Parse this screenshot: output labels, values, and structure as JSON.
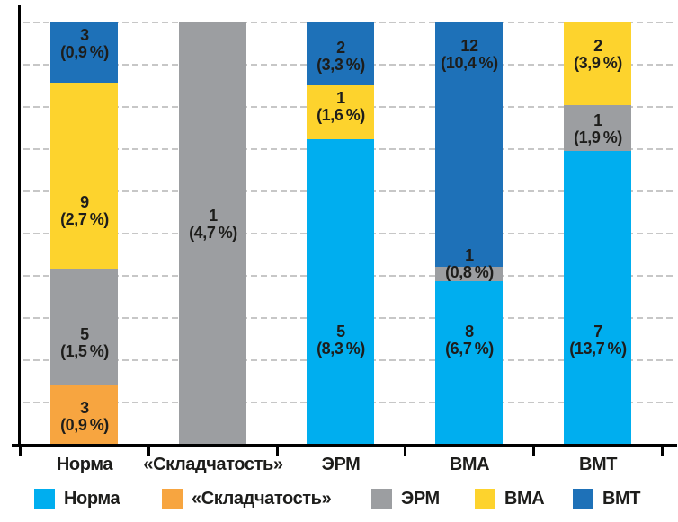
{
  "chart_data": {
    "type": "bar",
    "stacked": true,
    "title": "",
    "xlabel": "",
    "ylabel": "",
    "grid": "horizontal-dashed",
    "legend_position": "bottom",
    "categories": [
      "Норма",
      "«Складчатость»",
      "ЭРМ",
      "ВМА",
      "ВМТ"
    ],
    "legend": [
      {
        "name": "Норма",
        "color": "#00AEEF"
      },
      {
        "name": "«Складчатость»",
        "color": "#F7A540"
      },
      {
        "name": "ЭРМ",
        "color": "#9C9EA1"
      },
      {
        "name": "ВМА",
        "color": "#FDD32D"
      },
      {
        "name": "ВМТ",
        "color": "#1E71B8"
      }
    ],
    "bars": [
      {
        "category": "Норма",
        "segments": [
          {
            "series": "ВМТ",
            "value": 3,
            "percent": 0.9,
            "value_label": "3",
            "percent_label": "(0,9 %)"
          },
          {
            "series": "ВМА",
            "value": 9,
            "percent": 2.7,
            "value_label": "9",
            "percent_label": "(2,7 %)"
          },
          {
            "series": "ЭРМ",
            "value": 5,
            "percent": 1.5,
            "value_label": "5",
            "percent_label": "(1,5 %)"
          },
          {
            "series": "«Складчатость»",
            "value": 3,
            "percent": 0.9,
            "value_label": "3",
            "percent_label": "(0,9 %)"
          }
        ]
      },
      {
        "category": "«Складчатость»",
        "segments": [
          {
            "series": "ЭРМ",
            "value": 1,
            "percent": 4.7,
            "value_label": "1",
            "percent_label": "(4,7 %)"
          }
        ]
      },
      {
        "category": "ЭРМ",
        "segments": [
          {
            "series": "ВМТ",
            "value": 2,
            "percent": 3.3,
            "value_label": "2",
            "percent_label": "(3,3 %)"
          },
          {
            "series": "ВМА",
            "value": 1,
            "percent": 1.6,
            "value_label": "1",
            "percent_label": "(1,6 %)"
          },
          {
            "series": "Норма",
            "value": 5,
            "percent": 8.3,
            "value_label": "5",
            "percent_label": "(8,3 %)"
          }
        ]
      },
      {
        "category": "ВМА",
        "segments": [
          {
            "series": "ВМТ",
            "value": 12,
            "percent": 10.4,
            "value_label": "12",
            "percent_label": "(10,4 %)"
          },
          {
            "series": "ЭРМ",
            "value": 1,
            "percent": 0.8,
            "value_label": "1",
            "percent_label": "(0,8 %)"
          },
          {
            "series": "Норма",
            "value": 8,
            "percent": 6.7,
            "value_label": "8",
            "percent_label": "(6,7 %)"
          }
        ]
      },
      {
        "category": "ВМТ",
        "segments": [
          {
            "series": "ВМА",
            "value": 2,
            "percent": 3.9,
            "value_label": "2",
            "percent_label": "(3,9 %)"
          },
          {
            "series": "ЭРМ",
            "value": 1,
            "percent": 1.9,
            "value_label": "1",
            "percent_label": "(1,9 %)"
          },
          {
            "series": "Норма",
            "value": 7,
            "percent": 13.7,
            "value_label": "7",
            "percent_label": "(13,7 %)"
          }
        ]
      }
    ]
  }
}
